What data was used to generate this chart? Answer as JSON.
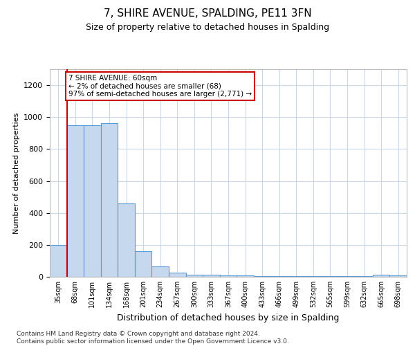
{
  "title": "7, SHIRE AVENUE, SPALDING, PE11 3FN",
  "subtitle": "Size of property relative to detached houses in Spalding",
  "xlabel": "Distribution of detached houses by size in Spalding",
  "ylabel": "Number of detached properties",
  "categories": [
    "35sqm",
    "68sqm",
    "101sqm",
    "134sqm",
    "168sqm",
    "201sqm",
    "234sqm",
    "267sqm",
    "300sqm",
    "333sqm",
    "367sqm",
    "400sqm",
    "433sqm",
    "466sqm",
    "499sqm",
    "532sqm",
    "565sqm",
    "599sqm",
    "632sqm",
    "665sqm",
    "698sqm"
  ],
  "values": [
    200,
    950,
    950,
    960,
    460,
    160,
    65,
    25,
    15,
    12,
    10,
    8,
    6,
    5,
    4,
    3,
    3,
    3,
    3,
    15,
    10
  ],
  "bar_color": "#c5d8ee",
  "bar_edge_color": "#5b9bd5",
  "annotation_text": "7 SHIRE AVENUE: 60sqm\n← 2% of detached houses are smaller (68)\n97% of semi-detached houses are larger (2,771) →",
  "annotation_box_color": "#ffffff",
  "annotation_box_edge_color": "#cc0000",
  "vline_color": "#cc0000",
  "ylim": [
    0,
    1300
  ],
  "yticks": [
    0,
    200,
    400,
    600,
    800,
    1000,
    1200
  ],
  "footer_text": "Contains HM Land Registry data © Crown copyright and database right 2024.\nContains public sector information licensed under the Open Government Licence v3.0.",
  "background_color": "#ffffff",
  "grid_color": "#c8d8e8"
}
